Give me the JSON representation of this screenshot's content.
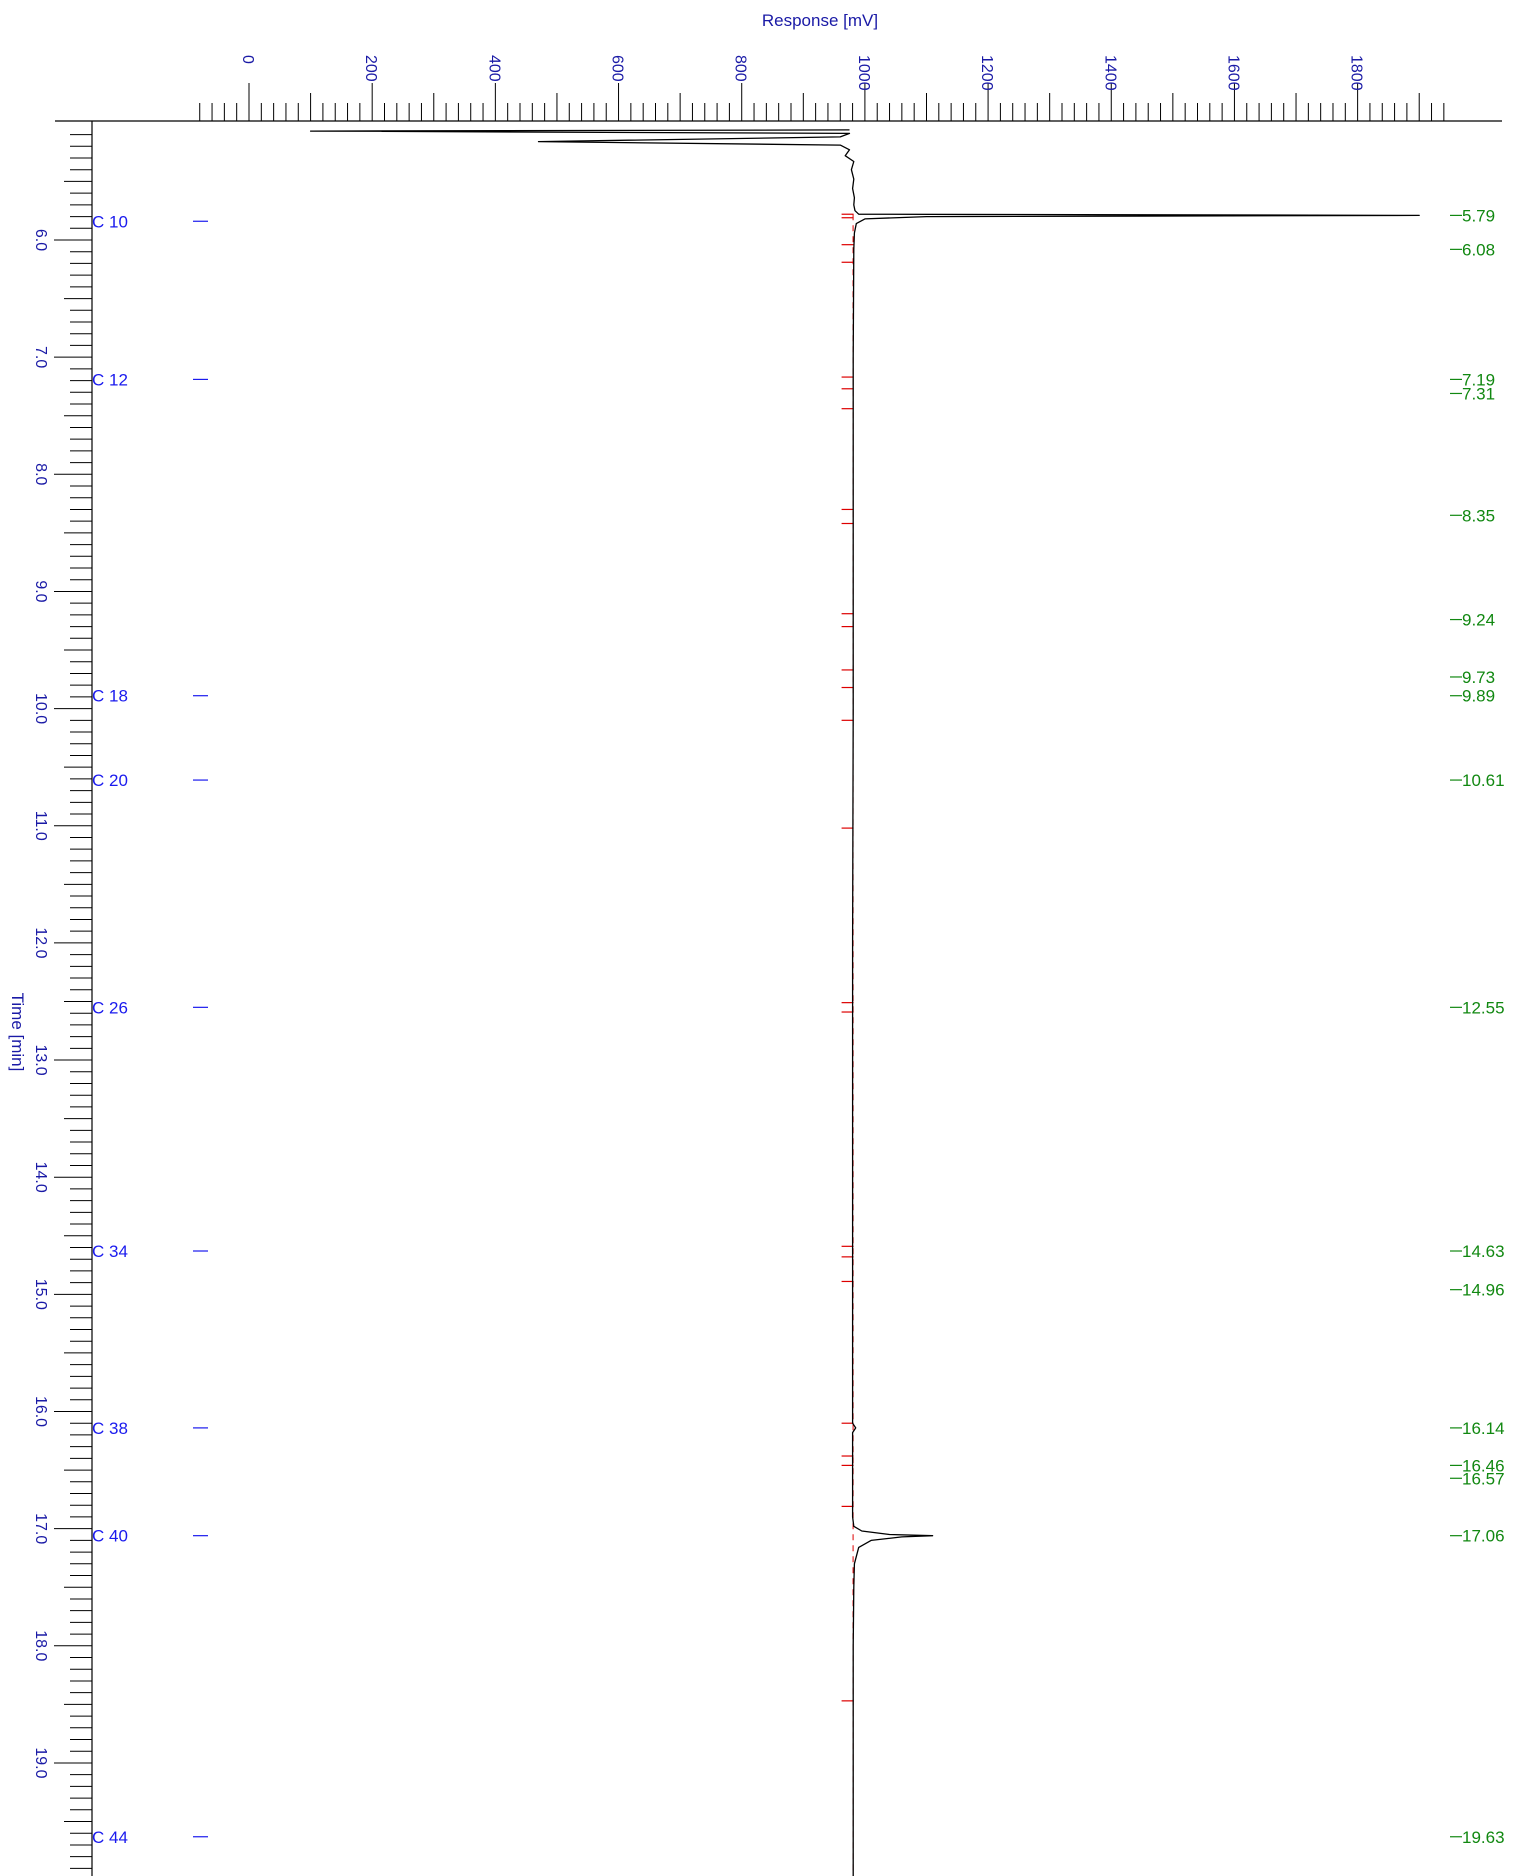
{
  "chart_data": {
    "type": "line",
    "orientation": "vertical-time",
    "xlabel": "Response [mV]",
    "ylabel": "Time [min]",
    "xlim": [
      -95,
      1960
    ],
    "ylim": [
      5.0,
      20.0
    ],
    "x_ticks": [
      0,
      200,
      400,
      600,
      800,
      1000,
      1200,
      1400,
      1600,
      1800
    ],
    "y_ticks": [
      "6.0",
      "7.0",
      "8.0",
      "9.0",
      "10.0",
      "11.0",
      "12.0",
      "13.0",
      "14.0",
      "15.0",
      "16.0",
      "17.0",
      "18.0",
      "19.0"
    ],
    "baseline_mV": 980,
    "colors": {
      "axis": "#000000",
      "axis_text": "#1a1aa6",
      "markers": "#1a1aee",
      "retention_times": "#118811",
      "integration_ticks": "#dd0000",
      "trace": "#000000"
    },
    "trace": [
      [
        5.06,
        975
      ],
      [
        5.07,
        100
      ],
      [
        5.09,
        975
      ],
      [
        5.12,
        960
      ],
      [
        5.16,
        470
      ],
      [
        5.19,
        960
      ],
      [
        5.23,
        975
      ],
      [
        5.28,
        968
      ],
      [
        5.33,
        982
      ],
      [
        5.4,
        978
      ],
      [
        5.48,
        982
      ],
      [
        5.56,
        980
      ],
      [
        5.64,
        983
      ],
      [
        5.7,
        982
      ],
      [
        5.75,
        984
      ],
      [
        5.78,
        990
      ],
      [
        5.79,
        1900
      ],
      [
        5.8,
        1100
      ],
      [
        5.82,
        1000
      ],
      [
        5.86,
        986
      ],
      [
        5.94,
        983
      ],
      [
        6.08,
        982
      ],
      [
        7.0,
        981
      ],
      [
        8.0,
        981
      ],
      [
        9.0,
        981
      ],
      [
        10.0,
        981
      ],
      [
        12.0,
        980
      ],
      [
        14.0,
        980
      ],
      [
        15.0,
        980
      ],
      [
        16.0,
        980
      ],
      [
        16.1,
        980
      ],
      [
        16.14,
        985
      ],
      [
        16.18,
        980
      ],
      [
        16.9,
        980
      ],
      [
        16.98,
        982
      ],
      [
        17.02,
        995
      ],
      [
        17.05,
        1040
      ],
      [
        17.06,
        1110
      ],
      [
        17.07,
        1060
      ],
      [
        17.1,
        1010
      ],
      [
        17.16,
        990
      ],
      [
        17.3,
        983
      ],
      [
        17.5,
        982
      ],
      [
        18.0,
        981
      ],
      [
        19.0,
        981
      ],
      [
        20.0,
        981
      ]
    ],
    "markers": [
      {
        "label": "C 10",
        "time": 5.84
      },
      {
        "label": "C 12",
        "time": 7.19
      },
      {
        "label": "C 18",
        "time": 9.89
      },
      {
        "label": "C 20",
        "time": 10.61
      },
      {
        "label": "C 26",
        "time": 12.55
      },
      {
        "label": "C 34",
        "time": 14.63
      },
      {
        "label": "C 38",
        "time": 16.14
      },
      {
        "label": "C 40",
        "time": 17.06
      },
      {
        "label": "C 44",
        "time": 19.63
      }
    ],
    "retention_times": [
      "5.79",
      "6.08",
      "7.19",
      "7.31",
      "8.35",
      "9.24",
      "9.73",
      "9.89",
      "10.61",
      "12.55",
      "14.63",
      "14.96",
      "16.14",
      "16.46",
      "16.57",
      "17.06",
      "19.63"
    ],
    "integration_ticks": [
      5.78,
      5.81,
      6.04,
      6.19,
      7.17,
      7.27,
      7.44,
      8.3,
      8.42,
      9.19,
      9.3,
      9.67,
      9.82,
      10.1,
      11.02,
      12.51,
      12.59,
      14.59,
      14.68,
      14.89,
      16.1,
      16.38,
      16.46,
      16.81,
      18.47
    ]
  }
}
